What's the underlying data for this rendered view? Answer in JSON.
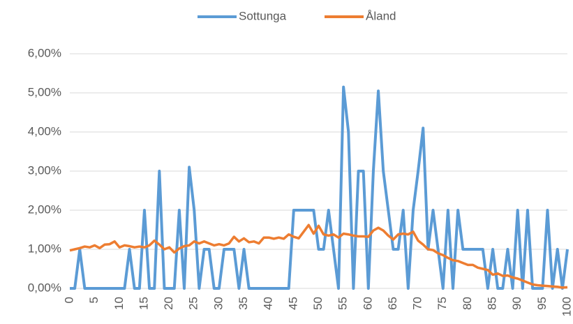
{
  "chart_data": {
    "type": "line",
    "x": [
      0,
      1,
      2,
      3,
      4,
      5,
      6,
      7,
      8,
      9,
      10,
      11,
      12,
      13,
      14,
      15,
      16,
      17,
      18,
      19,
      20,
      21,
      22,
      23,
      24,
      25,
      26,
      27,
      28,
      29,
      30,
      31,
      32,
      33,
      34,
      35,
      36,
      37,
      38,
      39,
      40,
      41,
      42,
      43,
      44,
      45,
      46,
      47,
      48,
      49,
      50,
      51,
      52,
      53,
      54,
      55,
      56,
      57,
      58,
      59,
      60,
      61,
      62,
      63,
      64,
      65,
      66,
      67,
      68,
      69,
      70,
      71,
      72,
      73,
      74,
      75,
      76,
      77,
      78,
      79,
      80,
      81,
      82,
      83,
      84,
      85,
      86,
      87,
      88,
      89,
      90,
      91,
      92,
      93,
      94,
      95,
      96,
      97,
      98,
      99,
      100
    ],
    "series": [
      {
        "name": "Sottunga",
        "color": "#5b9bd5",
        "values": [
          0,
          0,
          1,
          0,
          0,
          0,
          0,
          0,
          0,
          0,
          0,
          0,
          1,
          0,
          0,
          2,
          0,
          0,
          3,
          0,
          0,
          0,
          2,
          0,
          3.1,
          2,
          0,
          1,
          1,
          0,
          0,
          1,
          1,
          1,
          0,
          1,
          0,
          0,
          0,
          0,
          0,
          0,
          0,
          0,
          0,
          2,
          2,
          2,
          2,
          2,
          1,
          1,
          2,
          1,
          0,
          5.15,
          4,
          0,
          3,
          3,
          0,
          3,
          5.05,
          3,
          2,
          1,
          1,
          2,
          0,
          2,
          3,
          4.1,
          1,
          2,
          1,
          0,
          2,
          0,
          2,
          1,
          1,
          1,
          1,
          1,
          0,
          1,
          0,
          0,
          1,
          0,
          2,
          0,
          2,
          0,
          0,
          0,
          2,
          0,
          1,
          0,
          1
        ]
      },
      {
        "name": "Åland",
        "color": "#ed7d31",
        "values": [
          0.97,
          1.0,
          1.03,
          1.07,
          1.05,
          1.1,
          1.03,
          1.12,
          1.13,
          1.2,
          1.05,
          1.1,
          1.08,
          1.05,
          1.07,
          1.05,
          1.1,
          1.22,
          1.12,
          1.0,
          1.05,
          0.92,
          1.02,
          1.08,
          1.1,
          1.2,
          1.15,
          1.2,
          1.15,
          1.1,
          1.13,
          1.1,
          1.15,
          1.32,
          1.2,
          1.28,
          1.18,
          1.2,
          1.15,
          1.3,
          1.3,
          1.27,
          1.3,
          1.27,
          1.38,
          1.32,
          1.28,
          1.45,
          1.62,
          1.4,
          1.6,
          1.38,
          1.35,
          1.38,
          1.3,
          1.4,
          1.38,
          1.35,
          1.33,
          1.33,
          1.32,
          1.48,
          1.55,
          1.48,
          1.35,
          1.25,
          1.38,
          1.4,
          1.38,
          1.45,
          1.22,
          1.12,
          1.0,
          0.98,
          0.9,
          0.85,
          0.78,
          0.72,
          0.7,
          0.65,
          0.6,
          0.6,
          0.53,
          0.5,
          0.47,
          0.35,
          0.38,
          0.32,
          0.33,
          0.28,
          0.25,
          0.2,
          0.15,
          0.1,
          0.08,
          0.07,
          0.06,
          0.05,
          0.04,
          0.02,
          0.03
        ]
      }
    ],
    "xlim": [
      0,
      100
    ],
    "xticks": [
      0,
      5,
      10,
      15,
      20,
      25,
      30,
      35,
      40,
      45,
      50,
      55,
      60,
      65,
      70,
      75,
      80,
      85,
      90,
      95,
      100
    ],
    "ylim": [
      0,
      6
    ],
    "yticks": [
      {
        "value": 0,
        "label": "0,00%"
      },
      {
        "value": 1,
        "label": "1,00%"
      },
      {
        "value": 2,
        "label": "2,00%"
      },
      {
        "value": 3,
        "label": "3,00%"
      },
      {
        "value": 4,
        "label": "4,00%"
      },
      {
        "value": 5,
        "label": "5,00%"
      },
      {
        "value": 6,
        "label": "6,00%"
      }
    ],
    "grid": true,
    "legend": "top"
  }
}
